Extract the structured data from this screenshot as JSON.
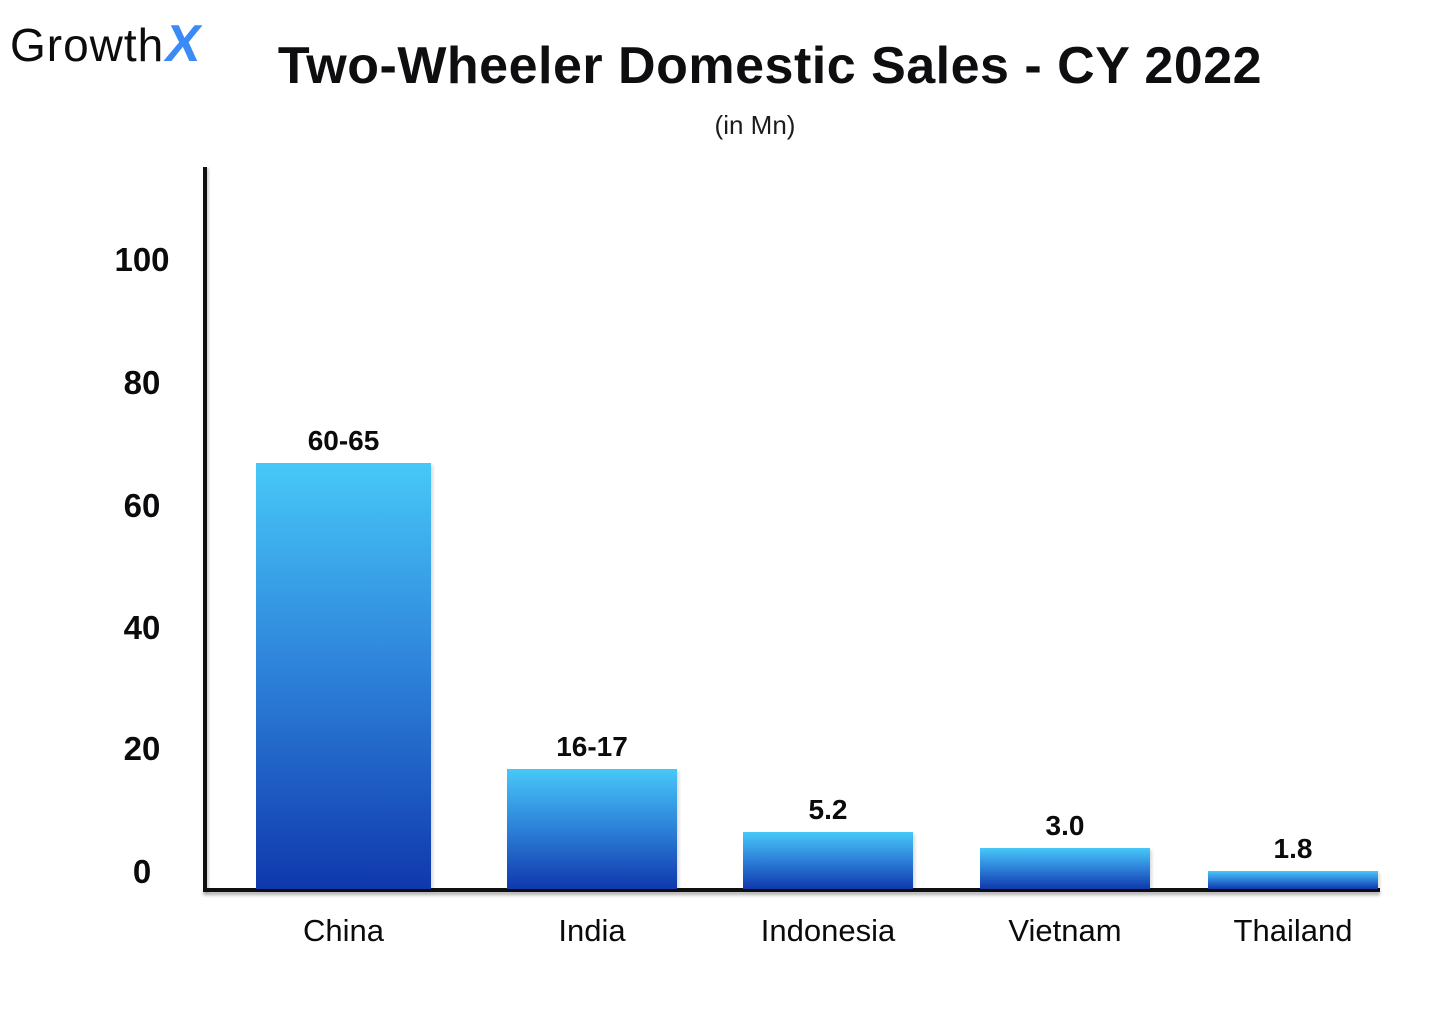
{
  "brand": {
    "name_prefix": "Growth",
    "name_suffix": "X"
  },
  "header": {
    "title": "Two-Wheeler Domestic Sales - CY 2022",
    "subtitle": "(in Mn)"
  },
  "colors": {
    "brand_x_blue": "#3B8BF7",
    "bar_gradient_top": "#47C8F8",
    "bar_gradient_bottom": "#1039AE",
    "text": "#0D0D0F"
  },
  "chart_data": {
    "type": "bar",
    "title": "Two-Wheeler Domestic Sales - CY 2022",
    "unit_note": "(in Mn)",
    "categories": [
      "China",
      "India",
      "Indonesia",
      "Vietnam",
      "Thailand"
    ],
    "values": [
      62.5,
      16.5,
      5.2,
      3.0,
      1.8
    ],
    "value_labels": [
      "60-65",
      "16-17",
      "5.2",
      "3.0",
      "1.8"
    ],
    "xlabel": "",
    "ylabel": "",
    "ylim": [
      0,
      100
    ],
    "yticks": [
      0,
      20,
      40,
      60,
      80,
      100
    ],
    "grid": false,
    "legend_position": "none",
    "bars_not_to_scale": true
  }
}
